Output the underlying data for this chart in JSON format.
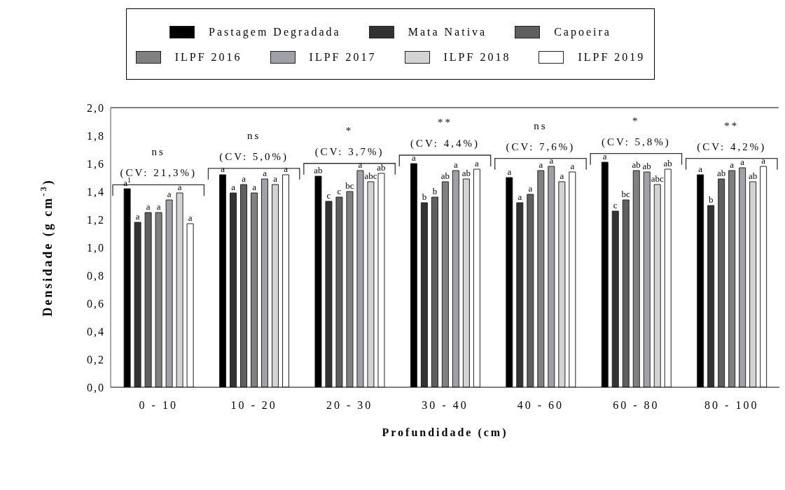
{
  "chart_data": {
    "type": "bar",
    "xlabel": "Profundidade (cm)",
    "ylabel": "Densidade (g cm$^{-3}$)",
    "categories": [
      "0 - 10",
      "10 - 20",
      "20 - 30",
      "30 - 40",
      "40 - 60",
      "60 - 80",
      "80 - 100"
    ],
    "series": [
      {
        "name": "Pastagem Degradada",
        "color": "#000000",
        "values": [
          1.42,
          1.52,
          1.51,
          1.6,
          1.5,
          1.61,
          1.52
        ],
        "value_labels": [
          "a$^{1}$",
          "a",
          "ab",
          "a",
          "a",
          "a",
          "a"
        ]
      },
      {
        "name": "Mata Nativa",
        "color": "#333333",
        "values": [
          1.18,
          1.39,
          1.33,
          1.32,
          1.32,
          1.26,
          1.3
        ],
        "value_labels": [
          "a",
          "a",
          "c",
          "b",
          "a",
          "c",
          "b"
        ]
      },
      {
        "name": "Capoeira",
        "color": "#5f5f5f",
        "values": [
          1.25,
          1.45,
          1.36,
          1.36,
          1.38,
          1.34,
          1.49
        ],
        "value_labels": [
          "a",
          "a",
          "c",
          "b",
          "a",
          "bc",
          "ab"
        ]
      },
      {
        "name": "ILPF 2016",
        "color": "#808080",
        "values": [
          1.25,
          1.39,
          1.4,
          1.47,
          1.55,
          1.55,
          1.55
        ],
        "value_labels": [
          "a",
          "a",
          "bc",
          "ab",
          "a",
          "ab",
          "a"
        ]
      },
      {
        "name": "ILPF 2017",
        "color": "#a0a0a8",
        "values": [
          1.34,
          1.49,
          1.55,
          1.55,
          1.58,
          1.54,
          1.57
        ],
        "value_labels": [
          "a",
          "a",
          "a",
          "a",
          "a",
          "ab",
          "a"
        ]
      },
      {
        "name": "ILPF 2018",
        "color": "#d3d3d3",
        "values": [
          1.39,
          1.45,
          1.47,
          1.49,
          1.47,
          1.45,
          1.47
        ],
        "value_labels": [
          "a",
          "a",
          "abc",
          "ab",
          "a",
          "abc",
          "ab"
        ]
      },
      {
        "name": "ILPF 2019",
        "color": "#ffffff",
        "values": [
          1.17,
          1.52,
          1.53,
          1.56,
          1.54,
          1.56,
          1.58
        ],
        "value_labels": [
          "a",
          "a",
          "ab",
          "a",
          "a",
          "ab",
          "a"
        ]
      }
    ],
    "ylim": [
      0,
      2
    ],
    "yticks": [
      {
        "value": 0,
        "label": "0,0"
      },
      {
        "value": 0.2,
        "label": "0,2"
      },
      {
        "value": 0.4,
        "label": "0,4"
      },
      {
        "value": 0.6,
        "label": "0,6"
      },
      {
        "value": 0.8,
        "label": "0,8"
      },
      {
        "value": 1,
        "label": "1,0"
      },
      {
        "value": 1.2,
        "label": "1,2"
      },
      {
        "value": 1.4,
        "label": "1,4"
      },
      {
        "value": 1.6,
        "label": "1,6"
      },
      {
        "value": 1.8,
        "label": "1,8"
      },
      {
        "value": 2,
        "label": "2,0"
      }
    ],
    "legend": "top",
    "annotations": [
      "ns",
      "(CV: 21,3%)",
      "ns",
      "(CV: 5,0%)",
      "*",
      "(CV: 3,7%)",
      "**",
      "(CV: 4,4%)",
      "ns",
      "(CV: 7,6%)",
      "*",
      "(CV: 5,8%)",
      "**",
      "(CV: 4,2%)"
    ]
  }
}
